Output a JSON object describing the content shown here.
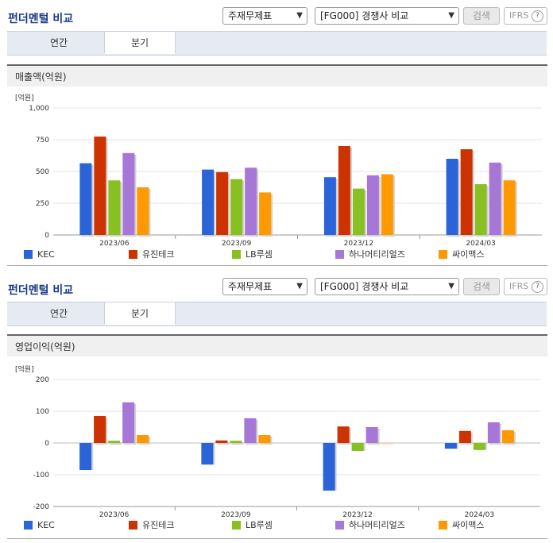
{
  "sections": [
    {
      "title": "펀더멘털 비교",
      "select1": "주재무제표",
      "select2": "[FG000] 경쟁사 비교",
      "search_label": "검색",
      "ifrs_label": "IFRS",
      "ifrs_help": "?",
      "tabs": [
        "연간",
        "분기"
      ],
      "active_tab": 1,
      "panel_title": "매출액(억원)"
    },
    {
      "title": "펀더멘털 비교",
      "select1": "주재무제표",
      "select2": "[FG000] 경쟁사 비교",
      "search_label": "검색",
      "ifrs_label": "IFRS",
      "ifrs_help": "?",
      "tabs": [
        "연간",
        "분기"
      ],
      "active_tab": 1,
      "panel_title": "영업이익(억원)"
    }
  ],
  "colors": {
    "KEC": "#2b63d9",
    "유진테크": "#cc3300",
    "LB루셈": "#88c021",
    "하나머티리얼즈": "#a777d8",
    "싸이맥스": "#ff9900"
  },
  "chart_data": [
    {
      "type": "bar",
      "unit_label": "[억원]",
      "categories": [
        "2023/06",
        "2023/09",
        "2023/12",
        "2024/03"
      ],
      "ylim": [
        0,
        1000
      ],
      "yticks": [
        0,
        250,
        500,
        750,
        1000
      ],
      "ytick_labels": [
        "0",
        "250",
        "500",
        "750",
        "1,000"
      ],
      "series": [
        {
          "name": "KEC",
          "values": [
            565,
            515,
            455,
            600
          ]
        },
        {
          "name": "유진테크",
          "values": [
            775,
            495,
            700,
            675
          ]
        },
        {
          "name": "LB루셈",
          "values": [
            430,
            440,
            365,
            400
          ]
        },
        {
          "name": "하나머티리얼즈",
          "values": [
            645,
            530,
            470,
            570
          ]
        },
        {
          "name": "싸이맥스",
          "values": [
            375,
            335,
            478,
            430
          ]
        }
      ]
    },
    {
      "type": "bar",
      "unit_label": "[억원]",
      "categories": [
        "2023/06",
        "2023/09",
        "2023/12",
        "2024/03"
      ],
      "ylim": [
        -200,
        200
      ],
      "yticks": [
        -200,
        -100,
        0,
        100,
        200
      ],
      "ytick_labels": [
        "-200",
        "-100",
        "0",
        "100",
        "200"
      ],
      "series": [
        {
          "name": "KEC",
          "values": [
            -85,
            -68,
            -150,
            -18
          ]
        },
        {
          "name": "유진테크",
          "values": [
            85,
            8,
            52,
            38
          ]
        },
        {
          "name": "LB루셈",
          "values": [
            7,
            7,
            -25,
            -22
          ]
        },
        {
          "name": "하나머티리얼즈",
          "values": [
            128,
            78,
            50,
            65
          ]
        },
        {
          "name": "싸이맥스",
          "values": [
            25,
            25,
            0,
            40
          ]
        }
      ]
    }
  ]
}
